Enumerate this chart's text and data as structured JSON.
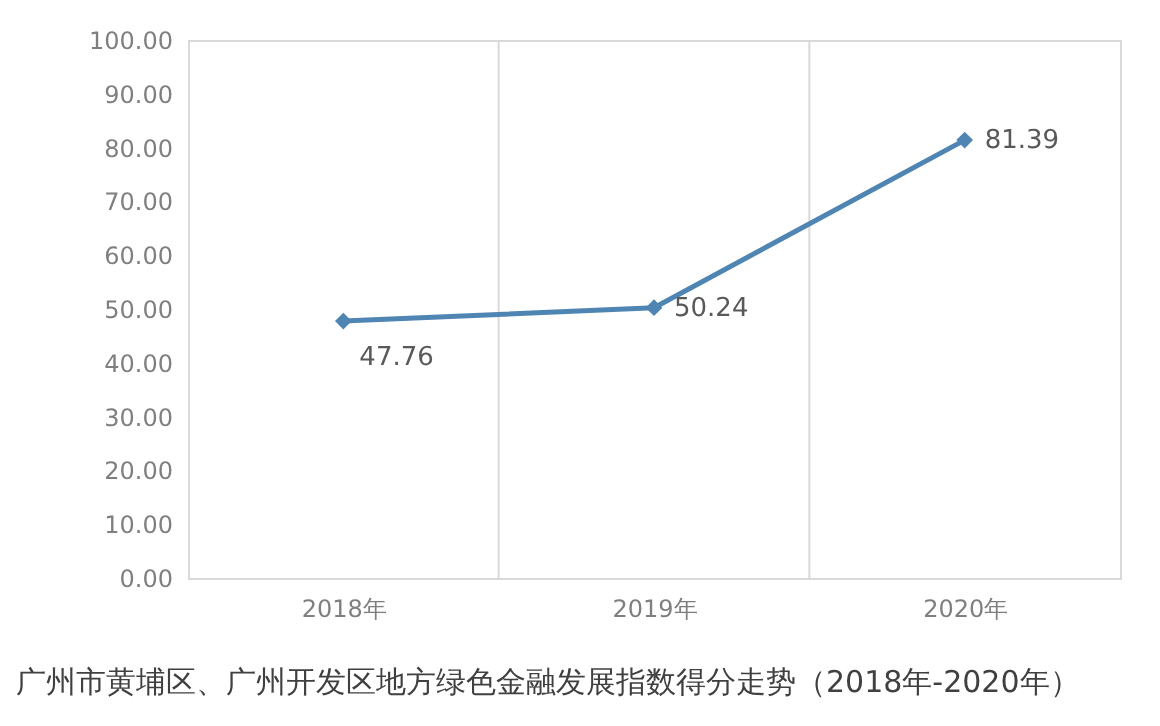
{
  "chart_data": {
    "type": "line",
    "title": "广州市黄埔区、广州开发区地方绿色金融发展指数得分走势（2018年-2020年）",
    "categories": [
      "2018年",
      "2019年",
      "2020年"
    ],
    "series": [
      {
        "color": "#4f85b3",
        "values": [
          47.76,
          50.24,
          81.39
        ]
      }
    ],
    "ylim": [
      0,
      100
    ],
    "yticks": [
      {
        "value": 0,
        "label": "0.00"
      },
      {
        "value": 10,
        "label": "10.00"
      },
      {
        "value": 20,
        "label": "20.00"
      },
      {
        "value": 30,
        "label": "30.00"
      },
      {
        "value": 40,
        "label": "40.00"
      },
      {
        "value": 50,
        "label": "50.00"
      },
      {
        "value": 60,
        "label": "60.00"
      },
      {
        "value": 70,
        "label": "70.00"
      },
      {
        "value": 80,
        "label": "80.00"
      },
      {
        "value": 90,
        "label": "90.00"
      },
      {
        "value": 100,
        "label": "100.00"
      }
    ],
    "grid": "x",
    "marker": "diamond",
    "line_style": "solid",
    "data_labels": true,
    "legend": false
  }
}
